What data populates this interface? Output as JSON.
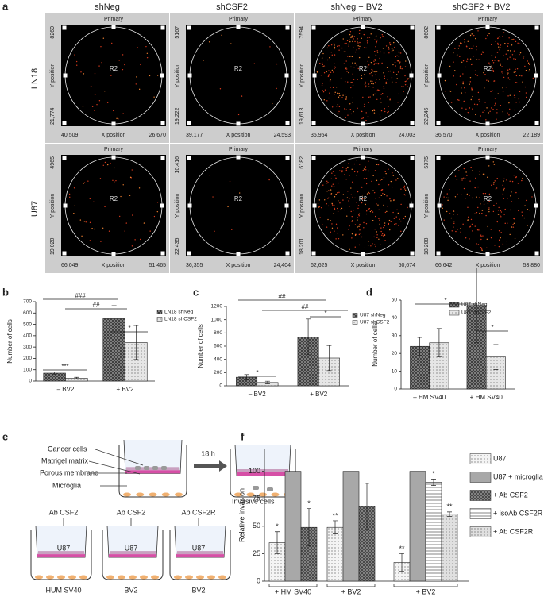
{
  "figure": {
    "a": {
      "panel": "a",
      "columns": [
        "shNeg",
        "shCSF2",
        "shNeg + BV2",
        "shCSF2 + BV2"
      ],
      "rows": [
        "LN18",
        "U87"
      ],
      "gate": "Primary",
      "region": "R2",
      "y_label": "Y position",
      "x_label": "X position",
      "cells": [
        [
          {
            "y_top": "8260",
            "y_bottom": "21,774",
            "x_left": "40,509",
            "x_right": "26,670"
          },
          {
            "y_top": "5167",
            "y_bottom": "19,222",
            "x_left": "39,177",
            "x_right": "24,593"
          },
          {
            "y_top": "7594",
            "y_bottom": "19,613",
            "x_left": "35,954",
            "x_right": "24,003"
          },
          {
            "y_top": "8602",
            "y_bottom": "22,246",
            "x_left": "36,570",
            "x_right": "22,189"
          }
        ],
        [
          {
            "y_top": "4965",
            "y_bottom": "19,020",
            "x_left": "66,049",
            "x_right": "51,465"
          },
          {
            "y_top": "10,416",
            "y_bottom": "22,435",
            "x_left": "36,355",
            "x_right": "24,404"
          },
          {
            "y_top": "6182",
            "y_bottom": "18,201",
            "x_left": "62,625",
            "x_right": "50,674"
          },
          {
            "y_top": "5375",
            "y_bottom": "18,208",
            "x_left": "66,642",
            "x_right": "53,880"
          }
        ]
      ]
    },
    "e": {
      "panel": "e",
      "labels": [
        "Cancer cells",
        "Matrigel matrix",
        "Porous membrane",
        "Microglia"
      ],
      "time": "18 h",
      "result": "Invasive cells",
      "wells": [
        {
          "antibody": "Ab CSF2",
          "insert": "U87",
          "bottom": "HUM SV40"
        },
        {
          "antibody": "Ab CSF2",
          "insert": "U87",
          "bottom": "BV2"
        },
        {
          "antibody": "Ab CSF2R",
          "insert": "U87",
          "bottom": "BV2"
        }
      ]
    }
  },
  "chart_data": [
    {
      "type": "bar",
      "panel": "b",
      "categories": [
        "– BV2",
        "+ BV2"
      ],
      "series": [
        {
          "name": "LN18 shNeg",
          "color": "#404040",
          "values": [
            70,
            550
          ],
          "errors": [
            10,
            115
          ]
        },
        {
          "name": "LN18 shCSF2",
          "color": "#e6e6e6",
          "values": [
            25,
            340
          ],
          "errors": [
            8,
            150
          ]
        }
      ],
      "ylim": [
        0,
        700
      ],
      "yticks": [
        0,
        100,
        200,
        300,
        400,
        500,
        600,
        700
      ],
      "ylabel": "Number of cells",
      "annotations": [
        "###",
        "##",
        "*",
        "***"
      ]
    },
    {
      "type": "bar",
      "panel": "c",
      "categories": [
        "– BV2",
        "+ BV2"
      ],
      "series": [
        {
          "name": "U87 shNeg",
          "color": "#404040",
          "values": [
            130,
            740
          ],
          "errors": [
            40,
            270
          ]
        },
        {
          "name": "U87 shCSF2",
          "color": "#e6e6e6",
          "values": [
            50,
            420
          ],
          "errors": [
            20,
            190
          ]
        }
      ],
      "ylim": [
        0,
        1200
      ],
      "yticks": [
        0,
        200,
        400,
        600,
        800,
        1000,
        1200
      ],
      "ylabel": "Number of cells",
      "annotations": [
        "##",
        "##",
        "*",
        "*"
      ]
    },
    {
      "type": "bar",
      "panel": "d",
      "categories": [
        "– HM SV40",
        "+ HM SV40"
      ],
      "series": [
        {
          "name": "U87 shNeg",
          "color": "#404040",
          "values": [
            24,
            47
          ],
          "errors": [
            5,
            21
          ]
        },
        {
          "name": "U87 shCSF2",
          "color": "#e6e6e6",
          "values": [
            26,
            18
          ],
          "errors": [
            8,
            7
          ]
        }
      ],
      "ylim": [
        0,
        50
      ],
      "yticks": [
        0,
        10,
        20,
        30,
        40,
        50
      ],
      "ylabel": "Number of cells",
      "annotations": [
        "*",
        "*"
      ]
    },
    {
      "type": "bar",
      "panel": "f",
      "categories": [
        "+ HM SV40",
        "+ BV2",
        "+ BV2"
      ],
      "series": [
        {
          "name": "U87",
          "color": "#f4f4f4",
          "values": [
            35,
            49,
            17
          ],
          "errors": [
            10,
            6,
            8
          ],
          "significance": [
            "*",
            "**",
            "**"
          ]
        },
        {
          "name": "U87 + microglia",
          "color": "#a8a8a8",
          "values": [
            100,
            100,
            100
          ]
        },
        {
          "name": "+ Ab CSF2",
          "color": "#4a4a4a",
          "values": [
            49,
            68,
            null
          ],
          "errors": [
            17,
            21,
            null
          ],
          "significance": [
            "*",
            null,
            null
          ]
        },
        {
          "name": "+ isoAb CSF2R",
          "color": "#ffffff",
          "values": [
            null,
            null,
            90
          ],
          "errors": [
            null,
            null,
            3
          ],
          "significance": [
            null,
            null,
            "*"
          ]
        },
        {
          "name": "+ Ab CSF2R",
          "color": "#e0e0e0",
          "values": [
            null,
            null,
            61
          ],
          "errors": [
            null,
            null,
            2
          ],
          "significance": [
            null,
            null,
            "**"
          ]
        }
      ],
      "ylim": [
        0,
        120
      ],
      "yticks": [
        0,
        25,
        50,
        75,
        100
      ],
      "ylabel": "Relative invasion"
    }
  ]
}
